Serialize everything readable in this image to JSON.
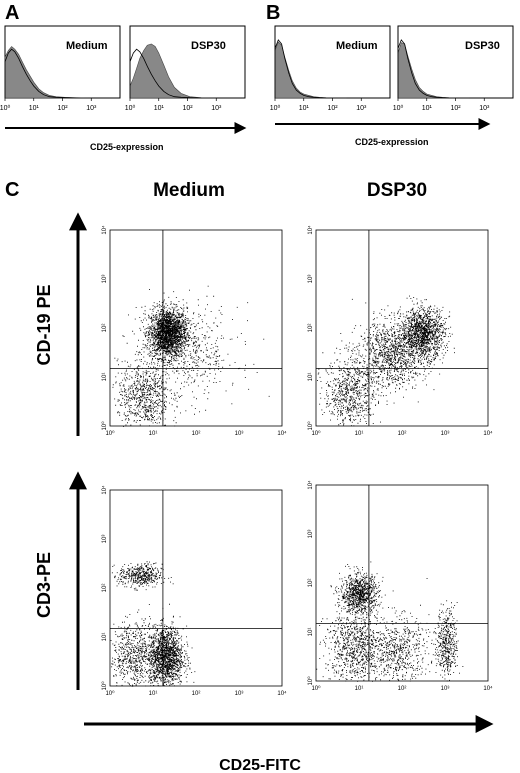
{
  "panel_letters": {
    "a": "A",
    "b": "B",
    "c": "C"
  },
  "panel_a": {
    "xlabel": "CD25-expression",
    "plots": [
      {
        "title": "Medium",
        "tick_labels": [
          "10⁰",
          "10¹",
          "10²",
          "10³"
        ]
      },
      {
        "title": "DSP30",
        "tick_labels": [
          "10⁰",
          "10¹",
          "10²",
          "10³"
        ]
      }
    ]
  },
  "panel_b": {
    "xlabel": "CD25-expression",
    "plots": [
      {
        "title": "Medium",
        "tick_labels": [
          "10⁰",
          "10¹",
          "10²",
          "10³"
        ]
      },
      {
        "title": "DSP30",
        "tick_labels": [
          "10⁰",
          "10¹",
          "10²",
          "10³"
        ]
      }
    ]
  },
  "panel_c": {
    "col_titles": [
      "Medium",
      "DSP30"
    ],
    "row_labels": [
      "CD-19 PE",
      "CD3-PE"
    ],
    "xlabel": "CD25-FITC",
    "x_ticks": [
      "10⁰",
      "10¹",
      "10²",
      "10³",
      "10⁴"
    ],
    "y_ticks": [
      "10⁰",
      "10¹",
      "10²",
      "10³",
      "10⁴"
    ]
  },
  "chart_data": [
    {
      "type": "area",
      "panel": "A",
      "title": "Medium",
      "xscale": "log",
      "xlim": [
        1,
        10000
      ],
      "series": [
        {
          "name": "",
          "fill": "#888888",
          "x": [
            1,
            1.3,
            1.7,
            2.2,
            3,
            4,
            5.5,
            7.5,
            10,
            15,
            22,
            35,
            60,
            120,
            300,
            1000
          ],
          "y": [
            0.62,
            0.72,
            0.78,
            0.74,
            0.66,
            0.55,
            0.43,
            0.33,
            0.24,
            0.14,
            0.08,
            0.04,
            0.02,
            0.01,
            0.005,
            0
          ]
        },
        {
          "name": "",
          "fill": "none",
          "x": [
            1,
            1.3,
            1.7,
            2.2,
            3,
            4,
            5.5,
            7.5,
            10,
            15,
            22,
            35,
            60,
            120,
            300,
            1000
          ],
          "y": [
            0.55,
            0.68,
            0.74,
            0.7,
            0.6,
            0.48,
            0.36,
            0.26,
            0.18,
            0.1,
            0.05,
            0.02,
            0.01,
            0.005,
            0,
            0
          ]
        }
      ]
    },
    {
      "type": "area",
      "panel": "A",
      "title": "DSP30",
      "xscale": "log",
      "xlim": [
        1,
        10000
      ],
      "series": [
        {
          "name": "",
          "fill": "#888888",
          "x": [
            1,
            1.3,
            1.7,
            2.2,
            3,
            4,
            5.5,
            7.5,
            10,
            15,
            22,
            35,
            60,
            120,
            300,
            1000
          ],
          "y": [
            0.18,
            0.3,
            0.45,
            0.6,
            0.72,
            0.8,
            0.82,
            0.78,
            0.68,
            0.5,
            0.32,
            0.16,
            0.07,
            0.02,
            0.005,
            0
          ]
        },
        {
          "name": "",
          "fill": "none",
          "x": [
            1,
            1.3,
            1.7,
            2.2,
            3,
            4,
            5.5,
            7.5,
            10,
            15,
            22,
            35,
            60,
            120,
            300,
            1000
          ],
          "y": [
            0.55,
            0.68,
            0.74,
            0.7,
            0.6,
            0.48,
            0.36,
            0.26,
            0.18,
            0.1,
            0.05,
            0.02,
            0.01,
            0.005,
            0,
            0
          ]
        }
      ]
    },
    {
      "type": "area",
      "panel": "B",
      "title": "Medium",
      "xscale": "log",
      "xlim": [
        1,
        10000
      ],
      "series": [
        {
          "name": "",
          "fill": "#888888",
          "x": [
            1,
            1.3,
            1.7,
            2.2,
            3,
            4,
            5.5,
            7.5,
            10,
            15,
            22,
            35,
            60,
            120,
            300
          ],
          "y": [
            0.72,
            0.85,
            0.8,
            0.62,
            0.42,
            0.26,
            0.15,
            0.09,
            0.06,
            0.04,
            0.02,
            0.01,
            0.005,
            0,
            0
          ]
        },
        {
          "name": "",
          "fill": "none",
          "x": [
            1,
            1.3,
            1.7,
            2.2,
            3,
            4,
            5.5,
            7.5,
            10,
            15,
            22,
            35,
            60,
            120,
            300
          ],
          "y": [
            0.75,
            0.88,
            0.82,
            0.6,
            0.38,
            0.22,
            0.12,
            0.07,
            0.04,
            0.02,
            0.01,
            0.005,
            0,
            0,
            0
          ]
        }
      ]
    },
    {
      "type": "area",
      "panel": "B",
      "title": "DSP30",
      "xscale": "log",
      "xlim": [
        1,
        10000
      ],
      "series": [
        {
          "name": "",
          "fill": "#888888",
          "x": [
            1,
            1.3,
            1.7,
            2.2,
            3,
            4,
            5.5,
            7.5,
            10,
            15,
            22,
            35,
            60,
            120,
            300
          ],
          "y": [
            0.68,
            0.84,
            0.82,
            0.64,
            0.44,
            0.28,
            0.16,
            0.1,
            0.06,
            0.04,
            0.02,
            0.01,
            0.005,
            0,
            0
          ]
        },
        {
          "name": "",
          "fill": "none",
          "x": [
            1,
            1.3,
            1.7,
            2.2,
            3,
            4,
            5.5,
            7.5,
            10,
            15,
            22,
            35,
            60,
            120,
            300
          ],
          "y": [
            0.75,
            0.88,
            0.82,
            0.6,
            0.38,
            0.22,
            0.12,
            0.07,
            0.04,
            0.02,
            0.01,
            0.005,
            0,
            0,
            0
          ]
        }
      ]
    },
    {
      "type": "scatter",
      "panel": "C",
      "title": "Medium",
      "ylabel": "CD-19 PE",
      "xscale": "log",
      "yscale": "log",
      "xlim": [
        1,
        10000
      ],
      "ylim": [
        1,
        10000
      ],
      "gates": {
        "x": 17,
        "y": 15
      },
      "clusters": [
        {
          "x": 22,
          "y": 80,
          "spread_x": 0.22,
          "spread_y": 0.25,
          "count": 2200
        },
        {
          "x": 6,
          "y": 4,
          "spread_x": 0.3,
          "spread_y": 0.35,
          "count": 700
        },
        {
          "x": 60,
          "y": 30,
          "spread_x": 0.6,
          "spread_y": 0.5,
          "count": 500
        }
      ]
    },
    {
      "type": "scatter",
      "panel": "C",
      "title": "DSP30",
      "ylabel": "CD-19 PE",
      "xscale": "log",
      "yscale": "log",
      "xlim": [
        1,
        10000
      ],
      "ylim": [
        1,
        10000
      ],
      "gates": {
        "x": 17,
        "y": 15
      },
      "clusters": [
        {
          "x": 300,
          "y": 80,
          "spread_x": 0.25,
          "spread_y": 0.25,
          "count": 1300
        },
        {
          "x": 60,
          "y": 30,
          "spread_x": 0.4,
          "spread_y": 0.35,
          "count": 1100
        },
        {
          "x": 6,
          "y": 5,
          "spread_x": 0.3,
          "spread_y": 0.35,
          "count": 700
        }
      ]
    },
    {
      "type": "scatter",
      "panel": "C",
      "title": "Medium",
      "ylabel": "CD3-PE",
      "xscale": "log",
      "yscale": "log",
      "xlim": [
        1,
        10000
      ],
      "ylim": [
        1,
        10000
      ],
      "gates": {
        "x": 17,
        "y": 15
      },
      "clusters": [
        {
          "x": 5,
          "y": 180,
          "spread_x": 0.25,
          "spread_y": 0.12,
          "count": 450
        },
        {
          "x": 20,
          "y": 4,
          "spread_x": 0.2,
          "spread_y": 0.3,
          "count": 1500
        },
        {
          "x": 4,
          "y": 4,
          "spread_x": 0.3,
          "spread_y": 0.35,
          "count": 700
        }
      ]
    },
    {
      "type": "scatter",
      "panel": "C",
      "title": "DSP30",
      "ylabel": "CD3-PE",
      "xscale": "log",
      "yscale": "log",
      "xlim": [
        1,
        10000
      ],
      "ylim": [
        1,
        10000
      ],
      "gates": {
        "x": 17,
        "y": 15
      },
      "clusters": [
        {
          "x": 10,
          "y": 60,
          "spread_x": 0.22,
          "spread_y": 0.2,
          "count": 900
        },
        {
          "x": 8,
          "y": 5,
          "spread_x": 0.35,
          "spread_y": 0.35,
          "count": 800
        },
        {
          "x": 80,
          "y": 4,
          "spread_x": 0.35,
          "spread_y": 0.35,
          "count": 600
        },
        {
          "x": 1100,
          "y": 6,
          "spread_x": 0.12,
          "spread_y": 0.35,
          "count": 450
        }
      ]
    }
  ]
}
